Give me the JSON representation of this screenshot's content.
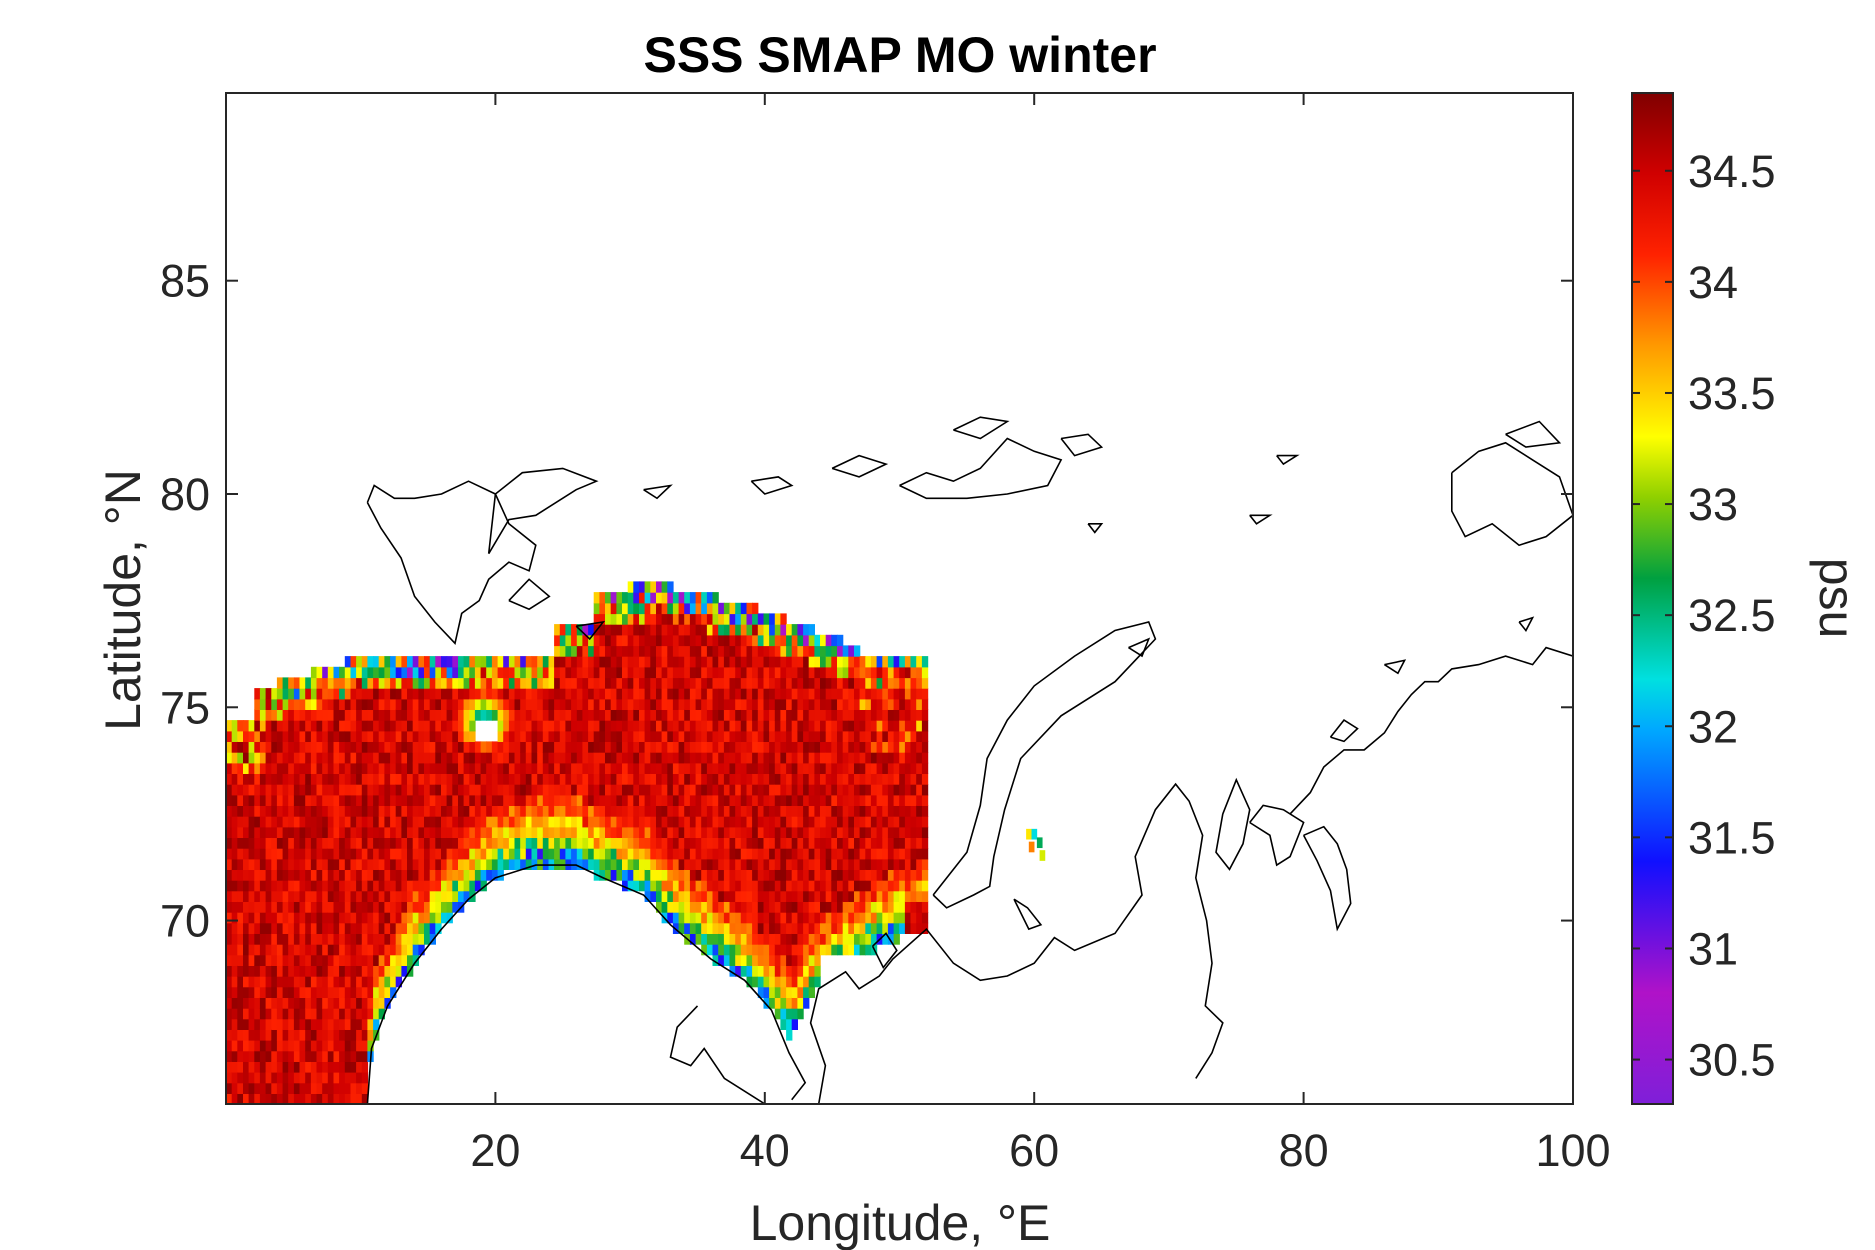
{
  "chart_data": {
    "type": "heatmap",
    "title": "SSS SMAP MO winter",
    "xlabel": "Longitude, °E",
    "ylabel": "Latitude, °N",
    "colorbar_label": "psu",
    "xlim": [
      0,
      100
    ],
    "ylim": [
      65.7,
      89.4
    ],
    "x_ticks": [
      "20",
      "40",
      "60",
      "80",
      "100"
    ],
    "x_tick_values": [
      20,
      40,
      60,
      80,
      100
    ],
    "y_ticks": [
      "70",
      "75",
      "80",
      "85"
    ],
    "y_tick_values": [
      70,
      75,
      80,
      85
    ],
    "clim": [
      30.3,
      34.85
    ],
    "colorbar_ticks": [
      "30.5",
      "31",
      "31.5",
      "32",
      "32.5",
      "33",
      "33.5",
      "34",
      "34.5"
    ],
    "colorbar_tick_values": [
      30.5,
      31,
      31.5,
      32,
      32.5,
      33,
      33.5,
      34,
      34.5
    ],
    "colormap": "jet-like (violet-blue-cyan-green-yellow-red-darkred)",
    "grid": false,
    "coastlines": true,
    "data_region": "Barents Sea, approx. 0–54°E, 66–78°N; salinity mostly 34–34.8 psu offshore, decreasing to 31–33 psu along the Norwegian/Kola coast and the northern ice edge"
  }
}
